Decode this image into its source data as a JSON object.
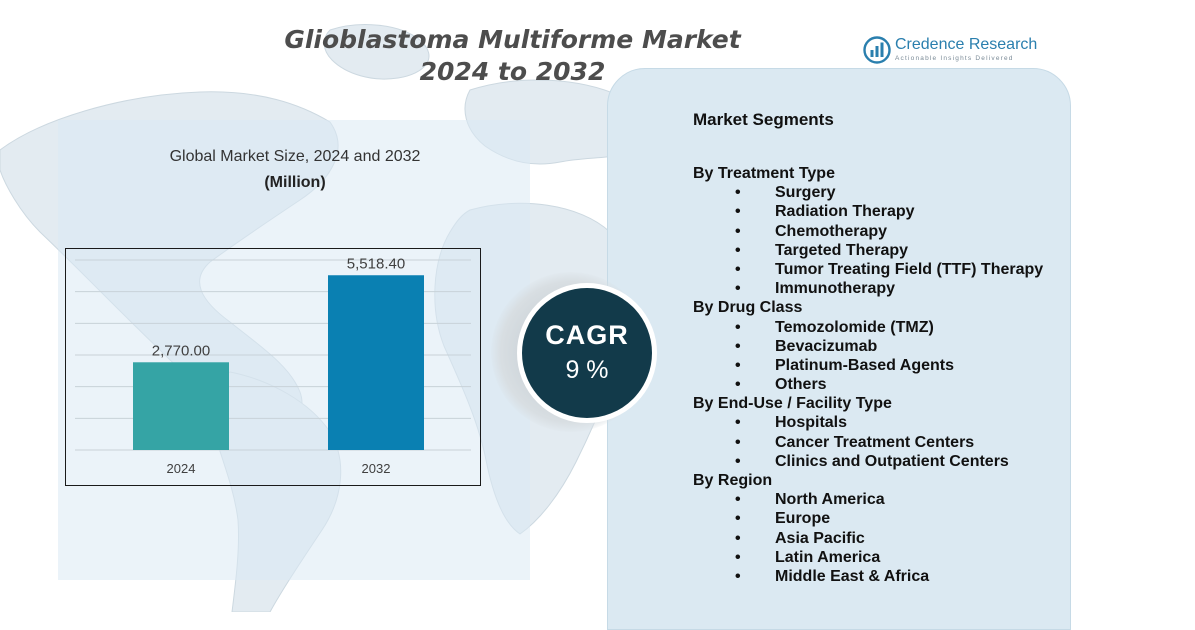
{
  "title": {
    "line1": "Glioblastoma Multiforme Market",
    "line2": "2024 to 2032"
  },
  "brand": {
    "name": "Credence Research",
    "tagline": "Actionable Insights Delivered",
    "color": "#2a7fae"
  },
  "chart_data": {
    "type": "bar",
    "title": "Global Market Size,  2024 and 2032",
    "unit": "(Million)",
    "categories": [
      "2024",
      "2032"
    ],
    "values": [
      2770.0,
      5518.4
    ],
    "data_labels": [
      "2,770.00",
      "5,518.40"
    ],
    "colors": [
      "#35a4a5",
      "#0a80b2"
    ],
    "ylim": [
      0,
      6000
    ],
    "grid": true
  },
  "cagr": {
    "label": "CAGR",
    "value": "9 %"
  },
  "segments": {
    "heading": "Market Segments",
    "bullet": "•",
    "groups": [
      {
        "name": "By Treatment Type",
        "items": [
          "Surgery",
          "Radiation Therapy",
          "Chemotherapy",
          "Targeted Therapy",
          "Tumor Treating Field (TTF) Therapy",
          "Immunotherapy"
        ]
      },
      {
        "name": "By Drug Class",
        "items": [
          "Temozolomide (TMZ)",
          "Bevacizumab",
          "Platinum-Based Agents",
          "Others"
        ]
      },
      {
        "name": "By End-Use / Facility Type",
        "items": [
          "Hospitals",
          "Cancer Treatment Centers",
          "Clinics and Outpatient Centers"
        ]
      },
      {
        "name": "By Region",
        "items": [
          "North America",
          "Europe",
          "Asia Pacific",
          "Latin America",
          "Middle East & Africa"
        ]
      }
    ]
  }
}
